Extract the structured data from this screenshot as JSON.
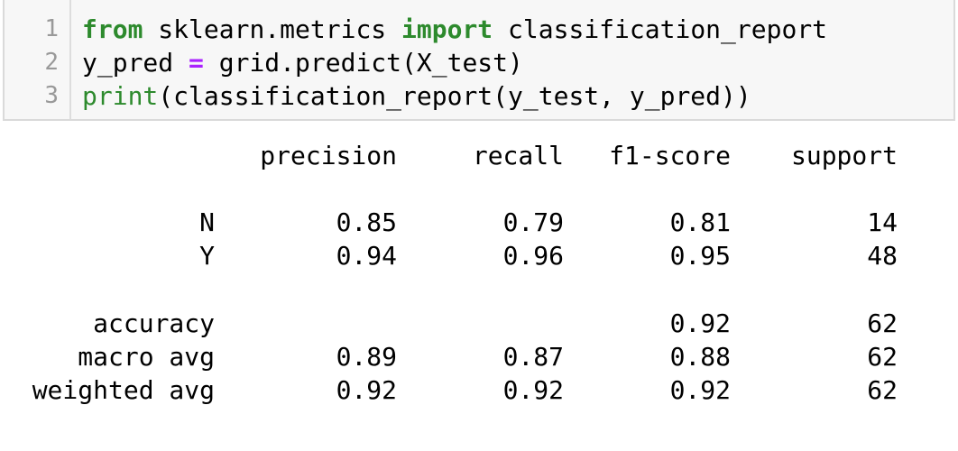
{
  "code_cell": {
    "line_numbers": [
      "1",
      "2",
      "3"
    ],
    "lines": [
      [
        {
          "text": "from",
          "kind": "keyword"
        },
        {
          "text": " sklearn.metrics ",
          "kind": "plain"
        },
        {
          "text": "import",
          "kind": "keyword"
        },
        {
          "text": " classification_report",
          "kind": "plain"
        }
      ],
      [
        {
          "text": "y_pred ",
          "kind": "plain"
        },
        {
          "text": "=",
          "kind": "operator"
        },
        {
          "text": " grid.predict(X_test)",
          "kind": "plain"
        }
      ],
      [
        {
          "text": "print",
          "kind": "builtin"
        },
        {
          "text": "(classification_report(y_test, y_pred))",
          "kind": "plain"
        }
      ]
    ]
  },
  "report": {
    "headers": [
      "precision",
      "recall",
      "f1-score",
      "support"
    ],
    "rows": [
      {
        "label": "N",
        "precision": "0.85",
        "recall": "0.79",
        "f1": "0.81",
        "support": "14"
      },
      {
        "label": "Y",
        "precision": "0.94",
        "recall": "0.96",
        "f1": "0.95",
        "support": "48"
      },
      {
        "label": "accuracy",
        "precision": "",
        "recall": "",
        "f1": "0.92",
        "support": "62"
      },
      {
        "label": "macro avg",
        "precision": "0.89",
        "recall": "0.87",
        "f1": "0.88",
        "support": "62"
      },
      {
        "label": "weighted avg",
        "precision": "0.92",
        "recall": "0.92",
        "f1": "0.92",
        "support": "62"
      }
    ]
  },
  "colors": {
    "keyword": "#2d8a2d",
    "operator": "#aa22ff",
    "line_number": "#999999",
    "cell_background": "#f7f7f7"
  }
}
